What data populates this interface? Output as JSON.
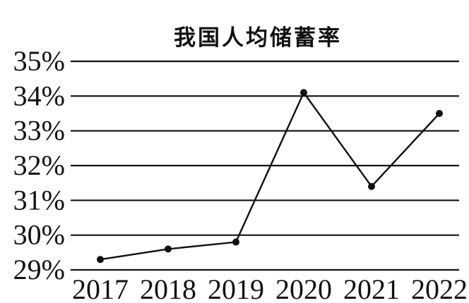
{
  "chart_data": {
    "type": "line",
    "title": "我国人均储蓄率",
    "xlabel": "",
    "ylabel": "",
    "categories": [
      "2017",
      "2018",
      "2019",
      "2020",
      "2021",
      "2022"
    ],
    "x_tick_labels": [
      "2017",
      "2018",
      "2019",
      "2020",
      "2021",
      "2022"
    ],
    "y_tick_labels": [
      "35%",
      "34%",
      "33%",
      "32%",
      "31%",
      "30%",
      "29%"
    ],
    "y_ticks": [
      35,
      34,
      33,
      32,
      31,
      30,
      29
    ],
    "ylim": [
      29,
      35
    ],
    "grid": true,
    "legend": "none",
    "series": [
      {
        "values": [
          29.3,
          29.6,
          29.8,
          34.1,
          31.4,
          33.5
        ]
      }
    ],
    "colors": {
      "line": "#111111",
      "grid": "#111111",
      "background": "#ffffff"
    }
  }
}
